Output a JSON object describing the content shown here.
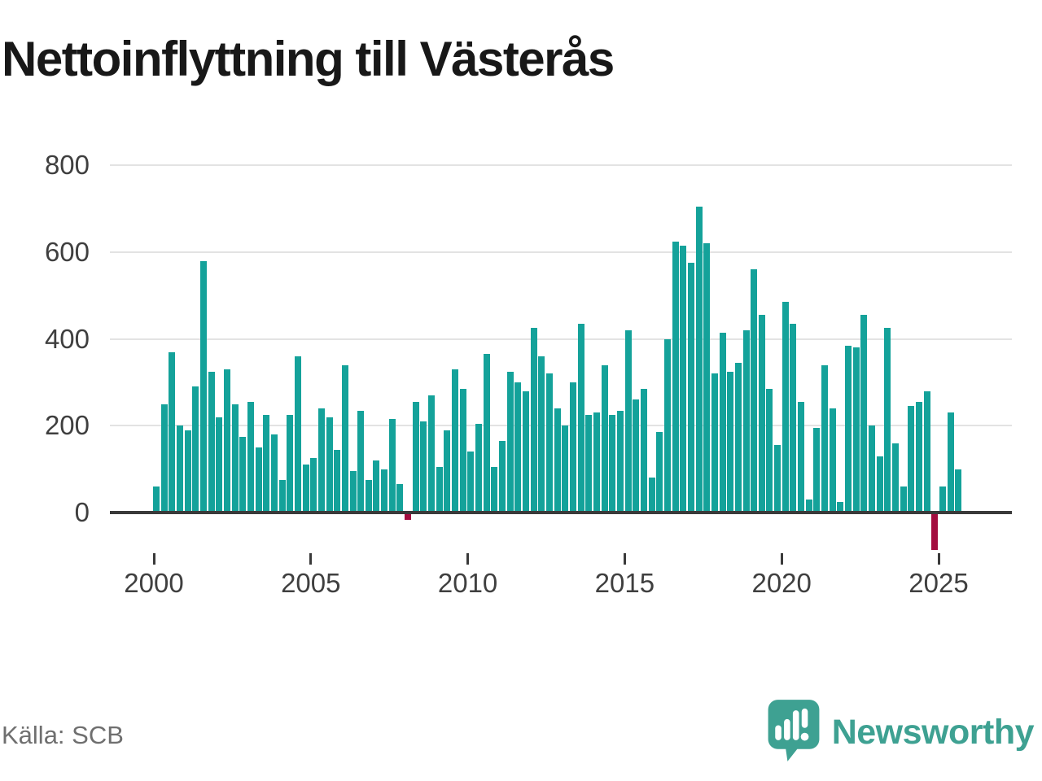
{
  "title": "Nettoinflyttning till Västerås",
  "source": "Källa: SCB",
  "brand": {
    "name": "Newsworthy",
    "color": "#3ea192"
  },
  "chart_data": {
    "type": "bar",
    "title": "Nettoinflyttning till Västerås",
    "period": "quarterly",
    "start_period": "2000Q1",
    "end_period": "2025Q3",
    "values": [
      60,
      250,
      370,
      200,
      190,
      290,
      580,
      325,
      220,
      330,
      250,
      175,
      255,
      150,
      225,
      180,
      75,
      225,
      360,
      110,
      125,
      240,
      220,
      145,
      340,
      95,
      235,
      75,
      120,
      100,
      215,
      65,
      -15,
      255,
      210,
      270,
      105,
      190,
      330,
      285,
      140,
      205,
      365,
      105,
      165,
      325,
      300,
      280,
      425,
      360,
      320,
      240,
      200,
      300,
      435,
      225,
      230,
      340,
      225,
      235,
      420,
      260,
      285,
      80,
      185,
      400,
      625,
      615,
      575,
      705,
      620,
      320,
      415,
      325,
      345,
      420,
      560,
      455,
      285,
      155,
      485,
      435,
      255,
      30,
      195,
      340,
      240,
      25,
      385,
      380,
      455,
      200,
      130,
      425,
      160,
      60,
      245,
      255,
      280,
      -85,
      60,
      230,
      100
    ],
    "y_ticks": [
      0,
      200,
      400,
      600,
      800
    ],
    "x_ticks": [
      2000,
      2005,
      2010,
      2015,
      2020,
      2025
    ],
    "ylim": [
      -120,
      850
    ],
    "grid": "horizontal",
    "legend": "none",
    "colors": {
      "positive": "#14a29a",
      "negative": "#a30d3f"
    }
  }
}
